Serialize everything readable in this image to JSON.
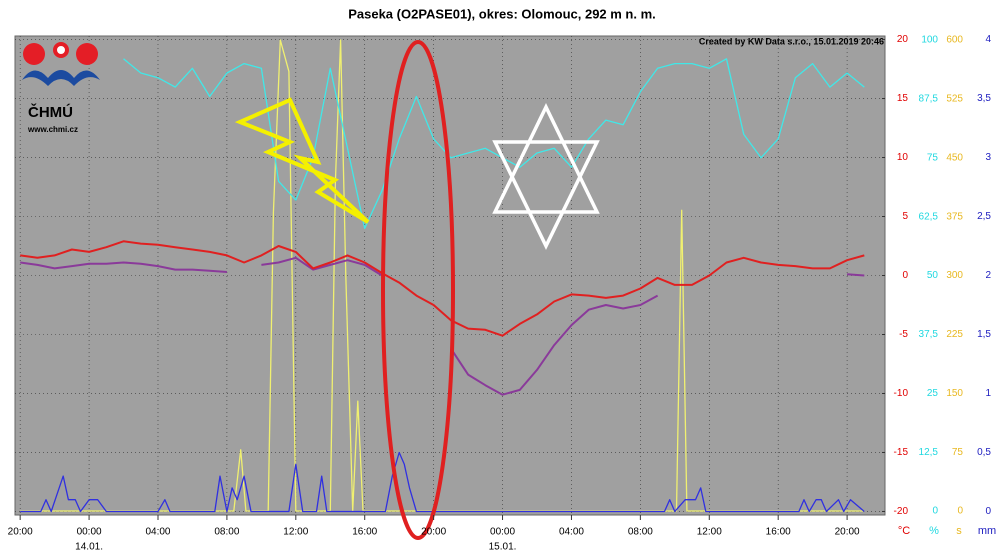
{
  "chart_data": {
    "type": "line",
    "title": "Paseka (O2PASE01), okres: Olomouc, 292 m n. m.",
    "credit": "Created by KW Data s.r.o., 15.01.2019 20:46",
    "logo": {
      "name": "ČHMÚ",
      "url": "www.chmi.cz"
    },
    "grid": true,
    "xlim": [
      -0.3,
      50.2
    ],
    "xticks": [
      {
        "value": 0,
        "label": "20:00"
      },
      {
        "value": 4,
        "label": "00:00"
      },
      {
        "value": 8,
        "label": "04:00"
      },
      {
        "value": 12,
        "label": "08:00"
      },
      {
        "value": 16,
        "label": "12:00"
      },
      {
        "value": 20,
        "label": "16:00"
      },
      {
        "value": 24,
        "label": "20:00"
      },
      {
        "value": 28,
        "label": "00:00"
      },
      {
        "value": 32,
        "label": "04:00"
      },
      {
        "value": 36,
        "label": "08:00"
      },
      {
        "value": 40,
        "label": "12:00"
      },
      {
        "value": 44,
        "label": "16:00"
      },
      {
        "value": 48,
        "label": "20:00"
      }
    ],
    "date_labels": [
      {
        "value": 4,
        "label": "14.01."
      },
      {
        "value": 28,
        "label": "15.01."
      }
    ],
    "axes": [
      {
        "unit": "°C",
        "color": "#e00000",
        "ylim": [
          -20.3,
          20.3
        ],
        "yticks": [
          -20,
          -15,
          -10,
          -5,
          0,
          5,
          10,
          15,
          20
        ]
      },
      {
        "unit": "%",
        "color": "#20d8e0",
        "ylim": [
          -0.85,
          100.85
        ],
        "yticks": [
          0,
          {
            "value": 12.5,
            "label": "12,5"
          },
          25,
          {
            "value": 37.5,
            "label": "37,5"
          },
          50,
          {
            "value": 62.5,
            "label": "62,5"
          },
          75,
          {
            "value": 87.5,
            "label": "87,5"
          },
          100
        ]
      },
      {
        "unit": "s",
        "color": "#e8b820",
        "ylim": [
          -5.1,
          605.1
        ],
        "yticks": [
          0,
          75,
          150,
          225,
          300,
          375,
          450,
          525,
          600
        ]
      },
      {
        "unit": "mm",
        "color": "#2020c0",
        "ylim": [
          -0.03,
          4.03
        ],
        "yticks": [
          0,
          {
            "value": 0.5,
            "label": "0,5"
          },
          1,
          {
            "value": 1.5,
            "label": "1,5"
          },
          2,
          {
            "value": 2.5,
            "label": "2,5"
          },
          3,
          {
            "value": 3.5,
            "label": "3,5"
          },
          4
        ]
      }
    ],
    "x": [
      0,
      1,
      2,
      3,
      4,
      5,
      6,
      7,
      8,
      9,
      10,
      11,
      12,
      13,
      14,
      15,
      16,
      17,
      18,
      19,
      20,
      21,
      22,
      23,
      24,
      25,
      26,
      27,
      28,
      29,
      30,
      31,
      32,
      33,
      34,
      35,
      36,
      37,
      38,
      39,
      40,
      41,
      42,
      43,
      44,
      45,
      46,
      47,
      48,
      49
    ],
    "series": [
      {
        "color": "#f0f070",
        "axis": 2,
        "x": [
          0,
          12.4,
          12.8,
          13.1,
          14.4,
          14.7,
          15.1,
          15.6,
          16.0,
          18.0,
          18.3,
          18.6,
          18.9,
          19.3,
          19.6,
          19.9,
          20.2,
          38.1,
          38.4,
          38.7,
          49
        ],
        "values": [
          0,
          0,
          78,
          0,
          0,
          380,
          600,
          560,
          0,
          0,
          420,
          600,
          300,
          0,
          140,
          0,
          0,
          0,
          383,
          0,
          0
        ]
      },
      {
        "color": "#3030e0",
        "axis": 3,
        "x": [
          0,
          1.2,
          1.5,
          1.8,
          2.5,
          2.8,
          3.2,
          3.5,
          4,
          4.5,
          5,
          8,
          8.4,
          8.7,
          11.3,
          11.6,
          12,
          12.3,
          12.6,
          13,
          13.4,
          15.6,
          16.0,
          16.4,
          17.2,
          17.5,
          17.8,
          21.2,
          21.6,
          22.0,
          22.3,
          22.6,
          23,
          37.4,
          37.7,
          38.0,
          38.6,
          39.2,
          39.5,
          39.8,
          45.2,
          45.5,
          45.8,
          46.2,
          46.5,
          46.8,
          47.5,
          47.8,
          48.2,
          49
        ],
        "values": [
          0,
          0,
          0.1,
          0,
          0.3,
          0.1,
          0.1,
          0,
          0.1,
          0.1,
          0,
          0,
          0.1,
          0,
          0,
          0.3,
          0,
          0.2,
          0.1,
          0.3,
          0,
          0,
          0.4,
          0,
          0,
          0.3,
          0,
          0,
          0.3,
          0.5,
          0.4,
          0.2,
          0,
          0,
          0.1,
          0,
          0.1,
          0.1,
          0.2,
          0,
          0,
          0.1,
          0,
          0.1,
          0.1,
          0,
          0.1,
          0,
          0.1,
          0
        ]
      },
      {
        "color": "#8a3a9a",
        "axis": 0,
        "values": [
          1.1,
          0.9,
          0.6,
          0.8,
          1.0,
          1.0,
          1.1,
          1.0,
          0.8,
          0.5,
          0.5,
          0.4,
          0.3,
          null,
          0.9,
          1.1,
          1.5,
          0.5,
          0.9,
          1.3,
          0.9,
          0.0,
          null,
          null,
          null,
          -6.2,
          -8.4,
          -9.3,
          -10.1,
          -9.7,
          -8.0,
          -5.9,
          -4.2,
          -2.9,
          -2.5,
          -2.8,
          -2.5,
          -1.7,
          null,
          null,
          null,
          null,
          null,
          null,
          null,
          null,
          null,
          null,
          0.1,
          0.0
        ]
      },
      {
        "color": "#40e8e8",
        "axis": 1,
        "values": [
          null,
          null,
          null,
          null,
          null,
          null,
          96,
          93,
          92,
          90,
          94,
          88,
          93,
          95,
          94,
          70,
          66,
          75,
          94,
          77,
          60,
          68,
          79,
          88,
          79,
          75,
          76,
          77,
          75,
          73,
          76,
          77,
          73,
          79,
          83,
          82,
          89,
          94,
          95,
          95,
          94,
          96,
          80,
          75,
          79,
          92,
          95,
          90,
          93,
          90
        ]
      },
      {
        "color": "#e02020",
        "axis": 0,
        "values": [
          1.7,
          1.5,
          1.7,
          2.2,
          2.0,
          2.4,
          2.9,
          2.7,
          2.6,
          2.4,
          2.2,
          2.0,
          1.7,
          1.1,
          1.7,
          2.5,
          2.0,
          0.6,
          1.1,
          1.7,
          1.1,
          0.2,
          -0.6,
          -1.7,
          -2.5,
          -3.8,
          -4.5,
          -4.6,
          -5.1,
          -4.1,
          -3.3,
          -2.2,
          -1.6,
          -1.7,
          -1.9,
          -1.7,
          -1.1,
          -0.2,
          -0.8,
          -0.8,
          0.0,
          1.1,
          1.5,
          1.1,
          0.9,
          0.8,
          0.6,
          0.6,
          1.3,
          1.7
        ]
      }
    ]
  }
}
